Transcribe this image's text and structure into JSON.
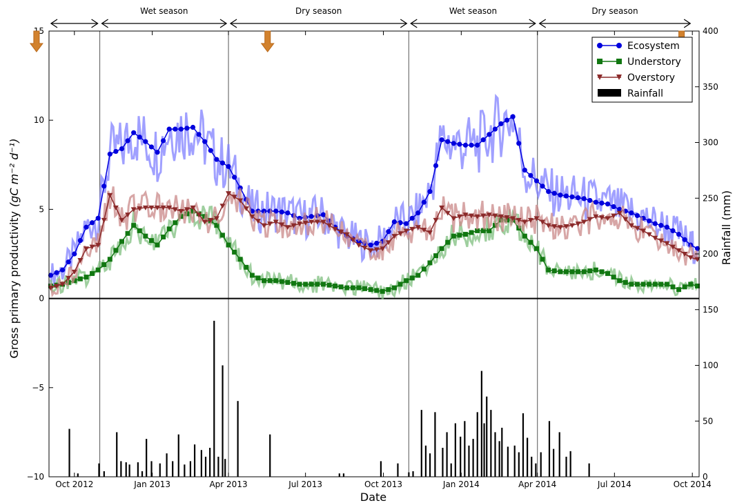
{
  "chart_data": {
    "type": "line",
    "xlabel": "Date",
    "ylabel_left": "Gross primary productivity",
    "ylabel_left_unit": "(gC m⁻² d⁻¹)",
    "ylabel_right": "Rainfall (mm)",
    "x_tick_labels": [
      "Oct 2012",
      "Jan 2013",
      "Apr 2013",
      "Jul 2013",
      "Oct 2013",
      "Jan 2014",
      "Apr 2014",
      "Jul 2014",
      "Oct 2014"
    ],
    "x_range": [
      "2012-09-01",
      "2014-10-09"
    ],
    "ylim_left": [
      -10,
      15
    ],
    "yticks_left": [
      "−10",
      "−5",
      "0",
      "5",
      "10",
      "15"
    ],
    "ylim_right": [
      0,
      400
    ],
    "yticks_right": [
      "0",
      "50",
      "100",
      "150",
      "200",
      "250",
      "300",
      "350",
      "400"
    ],
    "seasons": [
      {
        "label": "",
        "start": "2012-09-01",
        "end": "2012-10-31"
      },
      {
        "label": "Wet season",
        "start": "2012-10-31",
        "end": "2013-04-01"
      },
      {
        "label": "Dry season",
        "start": "2013-04-01",
        "end": "2013-10-31"
      },
      {
        "label": "Wet season",
        "start": "2013-10-31",
        "end": "2014-04-01"
      },
      {
        "label": "Dry season",
        "start": "2014-04-01",
        "end": "2014-10-01"
      }
    ],
    "season_dividers": [
      "2012-10-31",
      "2013-04-01",
      "2013-10-31",
      "2014-04-01"
    ],
    "event_arrows": [
      "2012-09-05",
      "2013-06-05",
      "2014-10-07"
    ],
    "legend": {
      "position": "top-right",
      "entries": [
        "Ecosystem",
        "Understory",
        "Overstory",
        "Rainfall"
      ]
    },
    "colors": {
      "ecosystem": "#0000dd",
      "understory": "#117711",
      "overstory": "#8b2a2a",
      "rainfall": "#000000",
      "arrow": "#d2822e"
    },
    "series": [
      {
        "name": "Ecosystem",
        "key": "ecosystem",
        "x": [
          "2012-09-03",
          "2012-09-17",
          "2012-10-01",
          "2012-10-15",
          "2012-10-29",
          "2012-11-12",
          "2012-11-26",
          "2012-12-10",
          "2012-12-24",
          "2013-01-07",
          "2013-01-21",
          "2013-02-04",
          "2013-02-18",
          "2013-03-04",
          "2013-03-18",
          "2013-04-01",
          "2013-04-15",
          "2013-04-29",
          "2013-05-13",
          "2013-05-27",
          "2013-06-10",
          "2013-06-24",
          "2013-07-08",
          "2013-07-22",
          "2013-08-05",
          "2013-08-19",
          "2013-09-02",
          "2013-09-16",
          "2013-09-30",
          "2013-10-14",
          "2013-10-28",
          "2013-11-11",
          "2013-11-25",
          "2013-12-09",
          "2013-12-23",
          "2014-01-06",
          "2014-01-20",
          "2014-02-03",
          "2014-02-17",
          "2014-03-03",
          "2014-03-17",
          "2014-03-31",
          "2014-04-14",
          "2014-04-28",
          "2014-05-12",
          "2014-05-26",
          "2014-06-09",
          "2014-06-23",
          "2014-07-07",
          "2014-07-21",
          "2014-08-04",
          "2014-08-18",
          "2014-09-01",
          "2014-09-15",
          "2014-09-29",
          "2014-10-07"
        ],
        "values": [
          1.3,
          1.6,
          2.5,
          4.0,
          4.5,
          8.1,
          8.4,
          9.3,
          8.8,
          8.2,
          9.5,
          9.5,
          9.6,
          8.8,
          7.8,
          7.4,
          6.2,
          4.9,
          4.9,
          4.9,
          4.8,
          4.5,
          4.6,
          4.7,
          4.0,
          3.5,
          3.2,
          3.0,
          3.2,
          4.3,
          4.2,
          4.8,
          6.0,
          8.9,
          8.7,
          8.6,
          8.6,
          9.2,
          9.8,
          10.2,
          7.2,
          6.6,
          6.0,
          5.8,
          5.7,
          5.6,
          5.4,
          5.3,
          5.0,
          4.8,
          4.5,
          4.2,
          4.0,
          3.6,
          3.0,
          2.8
        ]
      },
      {
        "name": "Understory",
        "key": "understory",
        "x": [
          "2012-09-03",
          "2012-09-17",
          "2012-10-01",
          "2012-10-15",
          "2012-10-29",
          "2012-11-12",
          "2012-11-26",
          "2012-12-10",
          "2012-12-24",
          "2013-01-07",
          "2013-01-21",
          "2013-02-04",
          "2013-02-18",
          "2013-03-04",
          "2013-03-18",
          "2013-04-01",
          "2013-04-15",
          "2013-04-29",
          "2013-05-13",
          "2013-05-27",
          "2013-06-10",
          "2013-06-24",
          "2013-07-08",
          "2013-07-22",
          "2013-08-05",
          "2013-08-19",
          "2013-09-02",
          "2013-09-16",
          "2013-09-30",
          "2013-10-14",
          "2013-10-28",
          "2013-11-11",
          "2013-11-25",
          "2013-12-09",
          "2013-12-23",
          "2014-01-06",
          "2014-01-20",
          "2014-02-03",
          "2014-02-17",
          "2014-03-03",
          "2014-03-17",
          "2014-03-31",
          "2014-04-14",
          "2014-04-28",
          "2014-05-12",
          "2014-05-26",
          "2014-06-09",
          "2014-06-23",
          "2014-07-07",
          "2014-07-21",
          "2014-08-04",
          "2014-08-18",
          "2014-09-01",
          "2014-09-15",
          "2014-09-29",
          "2014-10-07"
        ],
        "values": [
          0.7,
          0.8,
          1.0,
          1.2,
          1.6,
          2.2,
          3.2,
          4.1,
          3.5,
          3.0,
          3.9,
          4.6,
          4.9,
          4.6,
          4.1,
          3.0,
          2.2,
          1.3,
          1.0,
          1.0,
          0.9,
          0.8,
          0.8,
          0.8,
          0.7,
          0.6,
          0.6,
          0.5,
          0.4,
          0.6,
          1.0,
          1.3,
          2.0,
          2.8,
          3.5,
          3.6,
          3.8,
          3.8,
          4.4,
          4.4,
          3.5,
          2.8,
          1.6,
          1.5,
          1.5,
          1.5,
          1.6,
          1.4,
          1.0,
          0.8,
          0.8,
          0.8,
          0.8,
          0.5,
          0.8,
          0.7
        ]
      },
      {
        "name": "Overstory",
        "key": "overstory",
        "x": [
          "2012-09-03",
          "2012-09-17",
          "2012-10-01",
          "2012-10-15",
          "2012-10-29",
          "2012-11-12",
          "2012-11-26",
          "2012-12-10",
          "2012-12-24",
          "2013-01-07",
          "2013-01-21",
          "2013-02-04",
          "2013-02-18",
          "2013-03-04",
          "2013-03-18",
          "2013-04-01",
          "2013-04-15",
          "2013-04-29",
          "2013-05-13",
          "2013-05-27",
          "2013-06-10",
          "2013-06-24",
          "2013-07-08",
          "2013-07-22",
          "2013-08-05",
          "2013-08-19",
          "2013-09-02",
          "2013-09-16",
          "2013-09-30",
          "2013-10-14",
          "2013-10-28",
          "2013-11-11",
          "2013-11-25",
          "2013-12-09",
          "2013-12-23",
          "2014-01-06",
          "2014-01-20",
          "2014-02-03",
          "2014-02-17",
          "2014-03-03",
          "2014-03-17",
          "2014-03-31",
          "2014-04-14",
          "2014-04-28",
          "2014-05-12",
          "2014-05-26",
          "2014-06-09",
          "2014-06-23",
          "2014-07-07",
          "2014-07-21",
          "2014-08-04",
          "2014-08-18",
          "2014-09-01",
          "2014-09-15",
          "2014-09-29",
          "2014-10-07"
        ],
        "values": [
          0.6,
          0.8,
          1.5,
          2.8,
          3.0,
          5.8,
          4.4,
          5.0,
          5.1,
          5.1,
          5.1,
          4.9,
          5.1,
          4.3,
          4.5,
          5.9,
          5.5,
          4.6,
          4.1,
          4.3,
          4.0,
          4.2,
          4.3,
          4.3,
          3.9,
          3.6,
          3.0,
          2.7,
          2.8,
          3.5,
          3.8,
          4.0,
          3.7,
          5.1,
          4.5,
          4.7,
          4.6,
          4.7,
          4.6,
          4.5,
          4.3,
          4.5,
          4.1,
          4.0,
          4.1,
          4.3,
          4.6,
          4.5,
          4.8,
          4.1,
          3.8,
          3.4,
          3.1,
          2.7,
          2.3,
          2.2
        ]
      }
    ],
    "rainfall": {
      "name": "Rainfall",
      "unit": "mm",
      "x": [
        "2012-09-25",
        "2012-10-05",
        "2012-10-30",
        "2012-11-05",
        "2012-11-20",
        "2012-11-25",
        "2012-12-01",
        "2012-12-05",
        "2012-12-15",
        "2012-12-20",
        "2012-12-25",
        "2012-12-31",
        "2013-01-10",
        "2013-01-18",
        "2013-01-25",
        "2013-02-01",
        "2013-02-08",
        "2013-02-15",
        "2013-02-20",
        "2013-02-28",
        "2013-03-05",
        "2013-03-10",
        "2013-03-15",
        "2013-03-20",
        "2013-03-25",
        "2013-03-28",
        "2013-04-12",
        "2013-05-20",
        "2013-08-10",
        "2013-08-15",
        "2013-09-28",
        "2013-10-18",
        "2013-10-31",
        "2013-11-05",
        "2013-11-15",
        "2013-11-20",
        "2013-11-25",
        "2013-12-01",
        "2013-12-10",
        "2013-12-15",
        "2013-12-20",
        "2013-12-25",
        "2013-12-31",
        "2014-01-05",
        "2014-01-10",
        "2014-01-15",
        "2014-01-20",
        "2014-01-25",
        "2014-01-28",
        "2014-01-31",
        "2014-02-05",
        "2014-02-10",
        "2014-02-15",
        "2014-02-18",
        "2014-02-25",
        "2014-03-05",
        "2014-03-10",
        "2014-03-15",
        "2014-03-20",
        "2014-03-25",
        "2014-03-30",
        "2014-04-05",
        "2014-04-15",
        "2014-04-20",
        "2014-04-27",
        "2014-05-05",
        "2014-05-10",
        "2014-06-01"
      ],
      "values": [
        43,
        3,
        12,
        5,
        40,
        14,
        13,
        11,
        13,
        5,
        34,
        14,
        12,
        21,
        14,
        38,
        11,
        14,
        29,
        24,
        18,
        26,
        140,
        18,
        100,
        16,
        68,
        38,
        3,
        3,
        14,
        12,
        4,
        5,
        60,
        28,
        21,
        58,
        26,
        40,
        12,
        48,
        36,
        50,
        28,
        34,
        58,
        95,
        48,
        72,
        60,
        40,
        32,
        44,
        27,
        28,
        22,
        57,
        35,
        18,
        12,
        22,
        50,
        25,
        40,
        18,
        23,
        12
      ]
    }
  }
}
